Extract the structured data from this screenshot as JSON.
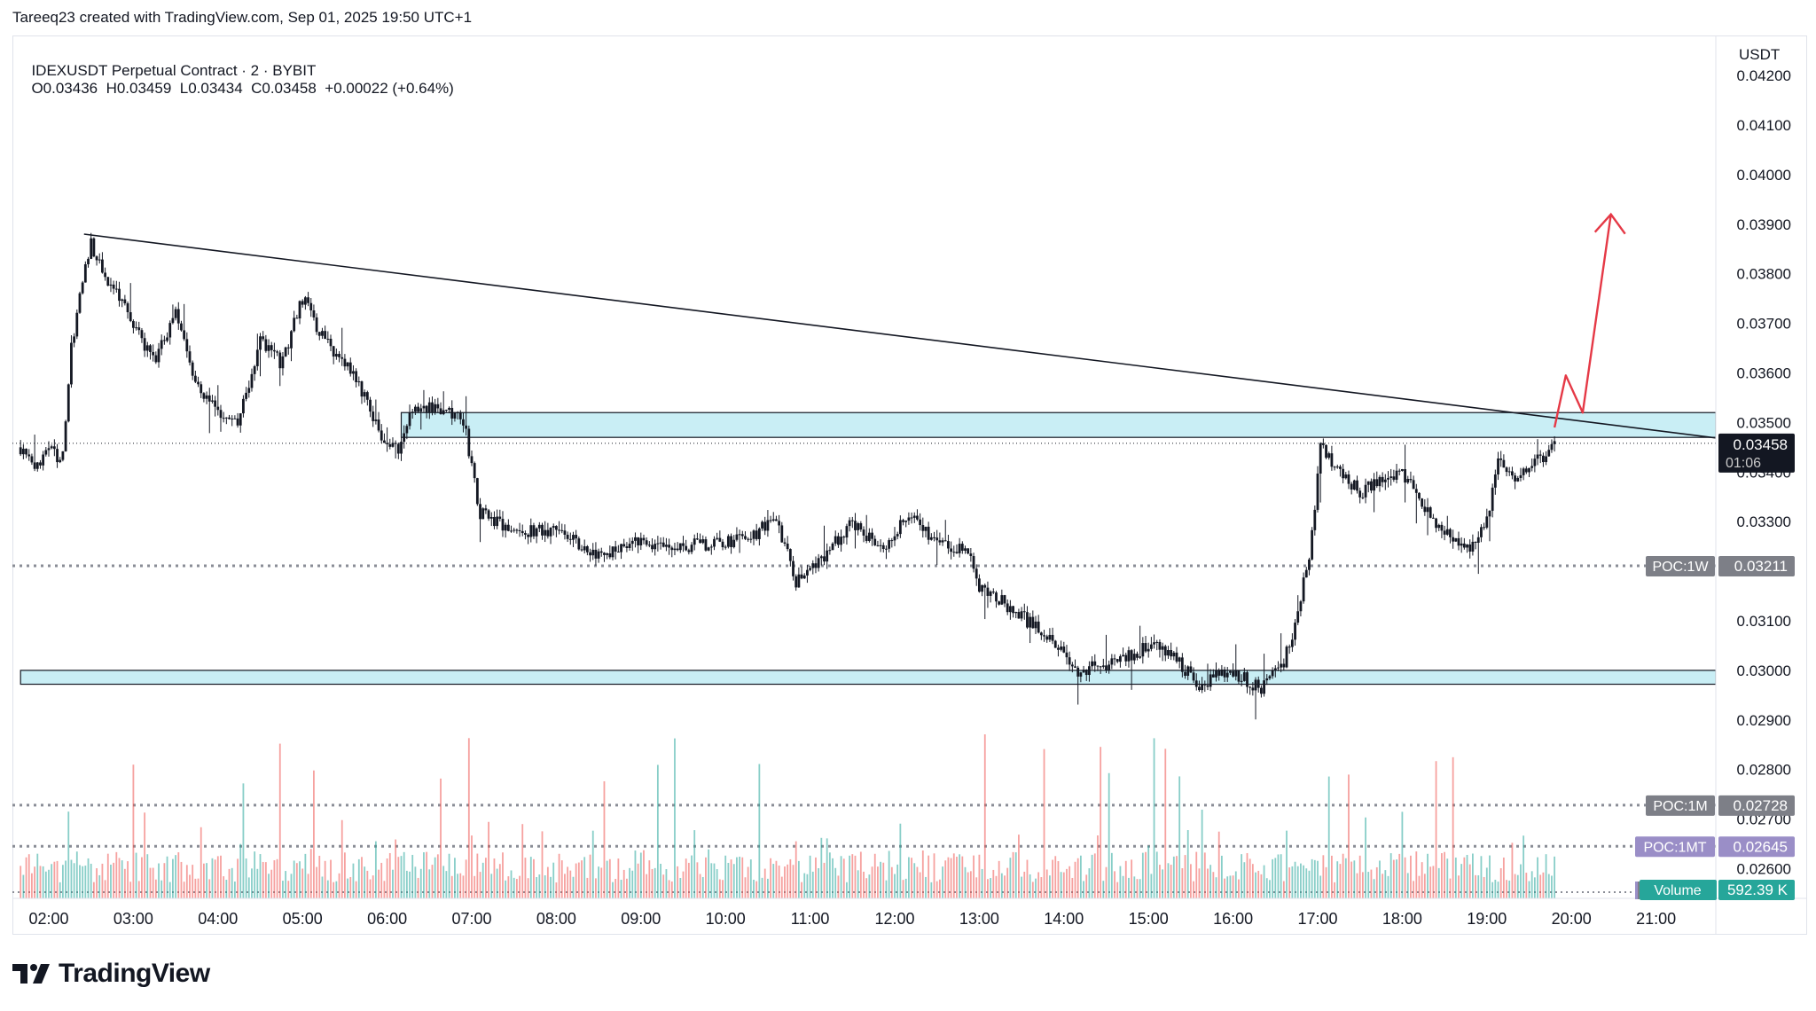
{
  "header": {
    "author_line": "Tareeq23 created with TradingView.com, Sep 01, 2025 19:50 UTC+1",
    "symbol": "IDEXUSDT Perpetual Contract · 2 · BYBIT",
    "ohlc": "O0.03436  H0.03459  L0.03434  C0.03458  +0.00022 (+0.64%)",
    "currency": "USDT"
  },
  "branding": {
    "logo_text": "TradingView"
  },
  "colors": {
    "up": "#26a69a",
    "down": "#ef5350",
    "candle": "#131722",
    "zone_fill": "#c9eef5",
    "arrow": "#e53946",
    "poc_badge": "#7d7f87",
    "poc_mt_badge": "#9a8ec7",
    "volume_badge": "#26a69a"
  },
  "chart_data": {
    "type": "candlestick",
    "timeframe": "2",
    "x_ticks": [
      "02:00",
      "03:00",
      "04:00",
      "05:00",
      "06:00",
      "07:00",
      "08:00",
      "09:00",
      "10:00",
      "11:00",
      "12:00",
      "13:00",
      "14:00",
      "15:00",
      "16:00",
      "17:00",
      "18:00",
      "19:00",
      "20:00",
      "21:00"
    ],
    "y_ticks": [
      "0.04200",
      "0.04100",
      "0.04000",
      "0.03900",
      "0.03800",
      "0.03700",
      "0.03600",
      "0.03500",
      "0.03400",
      "0.03300",
      "0.03100",
      "0.03000",
      "0.02900",
      "0.02800",
      "0.02700",
      "0.02600"
    ],
    "ylim": [
      0.0254,
      0.04245
    ],
    "price_path": [
      [
        "01:40",
        0.0345
      ],
      [
        "01:50",
        0.034
      ],
      [
        "02:00",
        0.0344
      ],
      [
        "02:10",
        0.0343
      ],
      [
        "02:15",
        0.0363
      ],
      [
        "02:25",
        0.038
      ],
      [
        "02:30",
        0.0386
      ],
      [
        "02:40",
        0.038
      ],
      [
        "03:00",
        0.037
      ],
      [
        "03:15",
        0.0362
      ],
      [
        "03:30",
        0.0372
      ],
      [
        "03:45",
        0.0357
      ],
      [
        "04:00",
        0.0352
      ],
      [
        "04:15",
        0.035
      ],
      [
        "04:30",
        0.0367
      ],
      [
        "04:45",
        0.0362
      ],
      [
        "05:00",
        0.0375
      ],
      [
        "05:15",
        0.0367
      ],
      [
        "05:30",
        0.0362
      ],
      [
        "05:45",
        0.0355
      ],
      [
        "06:00",
        0.0345
      ],
      [
        "06:10",
        0.0345
      ],
      [
        "06:15",
        0.0352
      ],
      [
        "06:30",
        0.0353
      ],
      [
        "06:45",
        0.0352
      ],
      [
        "06:55",
        0.035
      ],
      [
        "07:05",
        0.0332
      ],
      [
        "07:30",
        0.0328
      ],
      [
        "08:00",
        0.0328
      ],
      [
        "08:30",
        0.0323
      ],
      [
        "09:00",
        0.0326
      ],
      [
        "09:30",
        0.0325
      ],
      [
        "10:00",
        0.0326
      ],
      [
        "10:20",
        0.0327
      ],
      [
        "10:35",
        0.0331
      ],
      [
        "10:50",
        0.0318
      ],
      [
        "11:10",
        0.0323
      ],
      [
        "11:30",
        0.033
      ],
      [
        "11:50",
        0.0324
      ],
      [
        "12:10",
        0.0332
      ],
      [
        "12:30",
        0.0325
      ],
      [
        "12:50",
        0.0325
      ],
      [
        "13:00",
        0.0317
      ],
      [
        "13:30",
        0.0311
      ],
      [
        "13:50",
        0.0306
      ],
      [
        "14:10",
        0.03
      ],
      [
        "14:30",
        0.0301
      ],
      [
        "15:00",
        0.0305
      ],
      [
        "15:15",
        0.0304
      ],
      [
        "15:35",
        0.0297
      ],
      [
        "15:55",
        0.03
      ],
      [
        "16:10",
        0.0298
      ],
      [
        "16:20",
        0.0296
      ],
      [
        "16:35",
        0.0301
      ],
      [
        "16:45",
        0.031
      ],
      [
        "16:55",
        0.0325
      ],
      [
        "17:02",
        0.0345
      ],
      [
        "17:10",
        0.0342
      ],
      [
        "17:30",
        0.0336
      ],
      [
        "17:45",
        0.0338
      ],
      [
        "18:00",
        0.034
      ],
      [
        "18:15",
        0.0333
      ],
      [
        "18:30",
        0.0328
      ],
      [
        "18:45",
        0.0324
      ],
      [
        "19:00",
        0.033
      ],
      [
        "19:08",
        0.0343
      ],
      [
        "19:20",
        0.0338
      ],
      [
        "19:35",
        0.0342
      ],
      [
        "19:45",
        0.0344
      ],
      [
        "19:48",
        0.03458
      ]
    ],
    "trendline": {
      "from": [
        "02:25",
        0.0388
      ],
      "to": [
        "21:45",
        0.03468
      ]
    },
    "zones": [
      {
        "name": "resistance",
        "top": 0.0352,
        "bottom": 0.0347,
        "from": "06:10"
      },
      {
        "name": "support",
        "top": 0.03,
        "bottom": 0.02972,
        "from": "01:40"
      }
    ],
    "last_price": {
      "value": "0.03458",
      "countdown": "01:06",
      "ref_price": 0.03458
    },
    "poc_lines": [
      {
        "label": "POC:1W",
        "value": "0.03211",
        "price": 0.03211
      },
      {
        "label": "POC:1M",
        "value": "0.02728",
        "price": 0.02728
      },
      {
        "label": "POC:1MT",
        "value": "0.02645",
        "price": 0.02645
      }
    ],
    "volume": {
      "label": "Volume",
      "value": "592.39 K"
    },
    "projection_arrow": [
      [
        "19:48",
        0.0349
      ],
      [
        "19:56",
        0.03595
      ],
      [
        "20:08",
        0.0352
      ],
      [
        "20:28",
        0.0392
      ]
    ]
  }
}
